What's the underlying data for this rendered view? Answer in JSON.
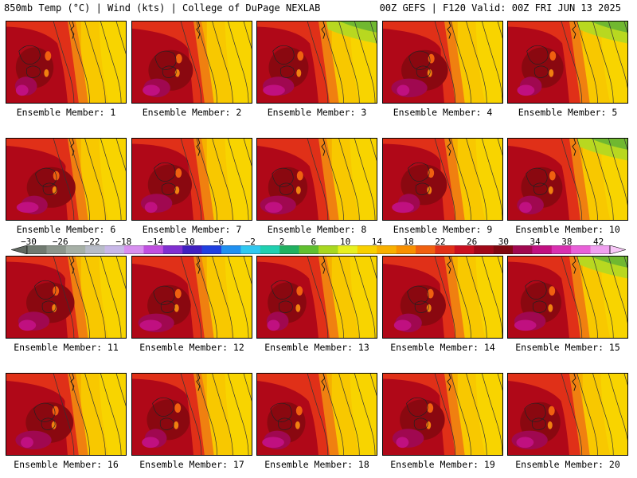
{
  "header": {
    "left": "850mb Temp (°C) | Wind (kts) | College of DuPage NEXLAB",
    "right": "00Z GEFS | F120 Valid: 00Z FRI JUN 13 2025"
  },
  "panels": [
    {
      "label": "Ensemble Member: 1"
    },
    {
      "label": "Ensemble Member: 2"
    },
    {
      "label": "Ensemble Member: 3"
    },
    {
      "label": "Ensemble Member: 4"
    },
    {
      "label": "Ensemble Member: 5"
    },
    {
      "label": "Ensemble Member: 6"
    },
    {
      "label": "Ensemble Member: 7"
    },
    {
      "label": "Ensemble Member: 8"
    },
    {
      "label": "Ensemble Member: 9"
    },
    {
      "label": "Ensemble Member: 10"
    },
    {
      "label": "Ensemble Member: 11"
    },
    {
      "label": "Ensemble Member: 12"
    },
    {
      "label": "Ensemble Member: 13"
    },
    {
      "label": "Ensemble Member: 14"
    },
    {
      "label": "Ensemble Member: 15"
    },
    {
      "label": "Ensemble Member: 16"
    },
    {
      "label": "Ensemble Member: 17"
    },
    {
      "label": "Ensemble Member: 18"
    },
    {
      "label": "Ensemble Member: 19"
    },
    {
      "label": "Ensemble Member: 20"
    }
  ],
  "colorbar": {
    "labels": [
      "−30",
      "−26",
      "−22",
      "−18",
      "−14",
      "−10",
      "−6",
      "−2",
      "2",
      "6",
      "10",
      "14",
      "18",
      "22",
      "26",
      "30",
      "34",
      "38",
      "42"
    ],
    "colors": [
      "#707a70",
      "#8c968c",
      "#a6b0a6",
      "#b8bcc8",
      "#c8b8e8",
      "#d890f0",
      "#c050e0",
      "#8030d0",
      "#4020c0",
      "#2040e0",
      "#2090f0",
      "#30c8f0",
      "#20d0b0",
      "#20b060",
      "#60c030",
      "#a8d820",
      "#e8f020",
      "#f8d000",
      "#f8b000",
      "#f89000",
      "#f06010",
      "#e03018",
      "#c81020",
      "#a00818",
      "#800810",
      "#a00850",
      "#c01080",
      "#d830b0",
      "#e860d8",
      "#f0a0f0"
    ],
    "stops": [
      -30,
      -28,
      -26,
      -24,
      -22,
      -20,
      -18,
      -16,
      -14,
      -12,
      -10,
      -8,
      -6,
      -4,
      -2,
      0,
      2,
      4,
      6,
      8,
      10,
      12,
      14,
      16,
      18,
      20,
      22,
      24,
      26,
      28,
      30,
      32,
      34,
      36,
      38,
      40,
      42
    ]
  }
}
